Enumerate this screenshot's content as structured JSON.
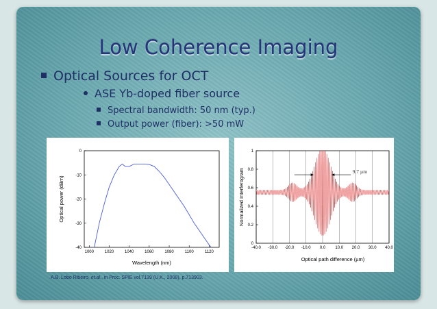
{
  "slide": {
    "title": "Low Coherence Imaging",
    "bullets": [
      {
        "level": 1,
        "text": "Optical Sources for OCT"
      },
      {
        "level": 2,
        "text": "ASE Yb-doped fiber source"
      },
      {
        "level": 3,
        "text": "Spectral bandwidth: 50 nm (typ.)"
      },
      {
        "level": 3,
        "text": "Output power (fiber): >50 mW"
      }
    ],
    "citation": {
      "authors": "A.B. Lobo Ribeiro, ",
      "etal": "et.al.",
      "source": ", in Proc. SPIE vol.7139 (U.K., 2008), p.713903."
    }
  },
  "colors": {
    "title": "#24357a",
    "text": "#1f2f66",
    "spectrum_line": "#4a5bd8",
    "interferogram": "#e04848"
  },
  "chart_data": [
    {
      "type": "line",
      "xlabel": "Wavelength (nm)",
      "ylabel": "Optical power (dBm)",
      "xlim": [
        995,
        1130
      ],
      "ylim": [
        -40,
        0
      ],
      "xticks": [
        1000,
        1020,
        1040,
        1060,
        1080,
        1100,
        1120
      ],
      "yticks": [
        0,
        -10,
        -20,
        -30,
        -40
      ],
      "grid": false,
      "series": [
        {
          "x": [
            1005,
            1010,
            1015,
            1020,
            1025,
            1030,
            1033,
            1036,
            1040,
            1045,
            1050,
            1055,
            1060,
            1065,
            1070,
            1075,
            1080,
            1085,
            1090,
            1095,
            1100,
            1105,
            1110,
            1115,
            1120,
            1122
          ],
          "y": [
            -40,
            -30,
            -22,
            -15,
            -10,
            -6.5,
            -5.5,
            -6.5,
            -6.5,
            -5.5,
            -5.5,
            -5.5,
            -5.7,
            -6.5,
            -8.5,
            -11,
            -14,
            -17,
            -20,
            -23,
            -26.5,
            -30,
            -33,
            -36,
            -39,
            -40
          ]
        }
      ]
    },
    {
      "type": "line",
      "xlabel": "Optical path difference (µm)",
      "ylabel": "Normalized Interferogram",
      "xlim": [
        -40,
        40
      ],
      "ylim": [
        0,
        1
      ],
      "xticks": [
        "-40.0",
        "-30.0",
        "-20.0",
        "-10.0",
        "0.0",
        "10.0",
        "20.0",
        "30.0",
        "40.0"
      ],
      "yticks": [
        "0",
        "0.2",
        "0.4",
        "0.6",
        "0.8",
        "1"
      ],
      "grid": true,
      "baseline": 0.55,
      "envelope_fwhm_um": 9.7,
      "annotation": "9.7 µm",
      "series": [
        {
          "x_range": [
            -40,
            40
          ],
          "peak": 1.0,
          "trough": 0.0
        }
      ]
    }
  ]
}
